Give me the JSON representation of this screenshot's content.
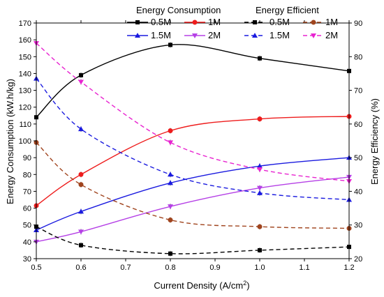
{
  "chart_data": {
    "type": "line",
    "xlabel": "Current Density (A/cm",
    "xlabel_sup": "2",
    "xlabel_tail": ")",
    "ylabel_left": "Energy Consumption (kW.h/kg)",
    "ylabel_right": "Energy Efficiency (%)",
    "xlim": [
      0.5,
      1.2
    ],
    "ylim_left": [
      30,
      170
    ],
    "ylim_right": [
      20,
      90
    ],
    "x_ticks": [
      "0.5",
      "0.6",
      "0.7",
      "0.8",
      "0.9",
      "1.0",
      "1.1",
      "1.2"
    ],
    "y_left_ticks": [
      "30",
      "40",
      "50",
      "60",
      "70",
      "80",
      "90",
      "100",
      "110",
      "120",
      "130",
      "140",
      "150",
      "160",
      "170"
    ],
    "y_right_ticks": [
      "20",
      "30",
      "40",
      "50",
      "60",
      "70",
      "80",
      "90"
    ],
    "legend": {
      "placement": "top",
      "group_titles": [
        "Energy Consumption",
        "Energy Efficient"
      ]
    },
    "x": [
      0.5,
      0.6,
      0.8,
      1.0,
      1.2
    ],
    "series": [
      {
        "name": "0.5M",
        "group": "Energy Consumption",
        "axis": "left",
        "color": "#000000",
        "marker": "square",
        "dash": false,
        "values": [
          114,
          139,
          157,
          149,
          141.5
        ]
      },
      {
        "name": "1M",
        "group": "Energy Consumption",
        "axis": "left",
        "color": "#ee1c1c",
        "marker": "circle",
        "dash": false,
        "values": [
          61.5,
          80,
          106,
          113,
          114.5
        ]
      },
      {
        "name": "1.5M",
        "group": "Energy Consumption",
        "axis": "left",
        "color": "#1a1adf",
        "marker": "triangle-up",
        "dash": false,
        "values": [
          47,
          58,
          75,
          85,
          90
        ]
      },
      {
        "name": "2M",
        "group": "Energy Consumption",
        "axis": "left",
        "color": "#b540e6",
        "marker": "triangle-down",
        "dash": false,
        "values": [
          40,
          46,
          61,
          72,
          78.5
        ]
      },
      {
        "name": "0.5M",
        "group": "Energy Efficient",
        "axis": "right",
        "color": "#000000",
        "marker": "square",
        "dash": true,
        "values": [
          29.5,
          24,
          21.5,
          22.5,
          23.5
        ]
      },
      {
        "name": "1M",
        "group": "Energy Efficient",
        "axis": "right",
        "color": "#a0441e",
        "marker": "circle",
        "dash": true,
        "values": [
          54.5,
          42,
          31.5,
          29.5,
          29
        ]
      },
      {
        "name": "1.5M",
        "group": "Energy Efficient",
        "axis": "right",
        "color": "#1a1adf",
        "marker": "triangle-up",
        "dash": true,
        "values": [
          73.5,
          58.5,
          45,
          39.5,
          37.5
        ]
      },
      {
        "name": "2M",
        "group": "Energy Efficient",
        "axis": "right",
        "color": "#e823d0",
        "marker": "triangle-down",
        "dash": true,
        "values": [
          84,
          72.5,
          54.5,
          46.5,
          43
        ]
      }
    ]
  }
}
